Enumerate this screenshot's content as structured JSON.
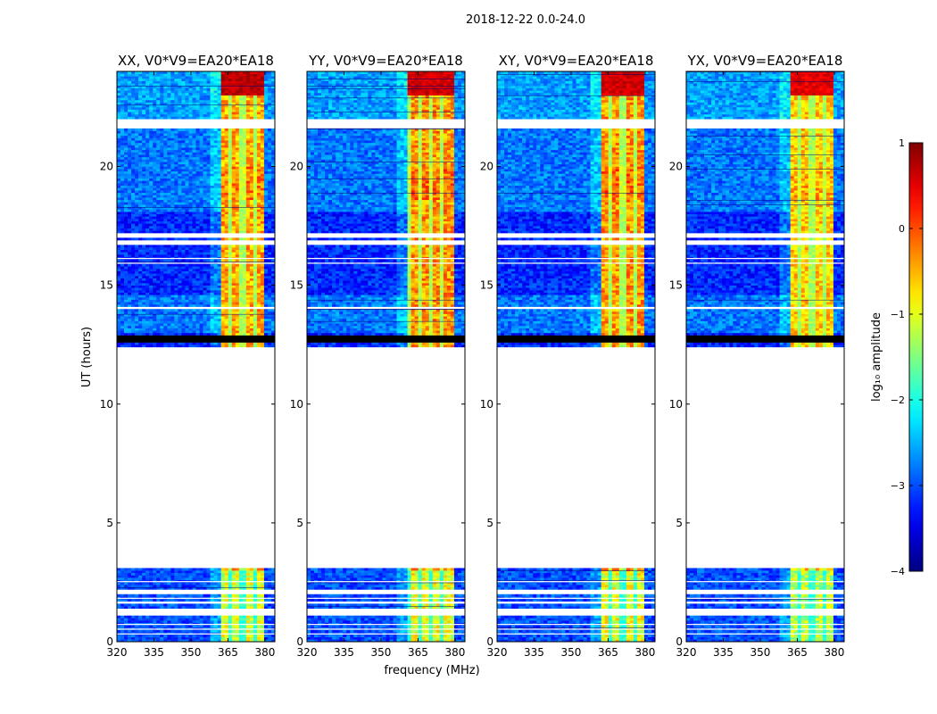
{
  "figure": {
    "suptitle": "2018-12-22 0.0-24.0"
  },
  "chart_data": {
    "type": "heatmap",
    "description_units": "log10 amplitude vs frequency (MHz) and UT (hours)",
    "xlabel": "frequency (MHz)",
    "ylabel": "UT (hours)",
    "xlim": [
      320,
      384
    ],
    "ylim": [
      0,
      24
    ],
    "x_ticks": [
      320,
      335,
      350,
      365,
      380
    ],
    "x_tick_labels": [
      "320",
      "335",
      "350",
      "365",
      "380"
    ],
    "y_ticks": [
      0,
      5,
      10,
      15,
      20
    ],
    "y_tick_labels": [
      "0",
      "5",
      "10",
      "15",
      "20"
    ],
    "panels": [
      {
        "title": "XX, V0*V9=EA20*EA18",
        "rfi_start_mhz": 361.5,
        "block_level": -0.1,
        "top_level": 0.7
      },
      {
        "title": "YY, V0*V9=EA20*EA18",
        "rfi_start_mhz": 361.0,
        "block_level": 0.0,
        "top_level": 0.6
      },
      {
        "title": "XY, V0*V9=EA20*EA18",
        "rfi_start_mhz": 361.5,
        "block_level": 0.0,
        "top_level": 0.6
      },
      {
        "title": "YX, V0*V9=EA20*EA18",
        "rfi_start_mhz": 361.5,
        "block_level": -0.3,
        "top_level": 0.5
      }
    ],
    "data_gaps_hours": [
      [
        3.1,
        12.4
      ],
      [
        21.6,
        22.0
      ],
      [
        17.0,
        17.2
      ],
      [
        16.7,
        16.9
      ],
      [
        14.0,
        14.1
      ],
      [
        2.0,
        2.2
      ],
      [
        1.6,
        1.75
      ],
      [
        1.05,
        1.35
      ]
    ],
    "dark_bands_hours": [
      [
        12.55,
        12.85
      ]
    ],
    "colorbar": {
      "label": "log₁₀ amplitude",
      "min": -4,
      "max": 1,
      "ticks": [
        -4,
        -3,
        -2,
        -1,
        0,
        1
      ],
      "tick_labels": [
        "−4",
        "−3",
        "−2",
        "−1",
        "0",
        "1"
      ],
      "colormap": "jet"
    }
  }
}
